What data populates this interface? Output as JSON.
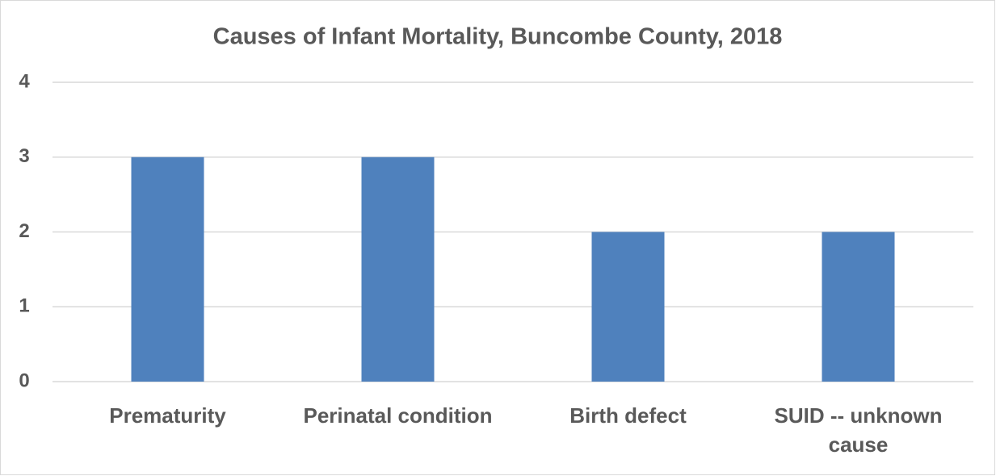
{
  "chart_data": {
    "type": "bar",
    "title": "Causes of Infant Mortality, Buncombe County, 2018",
    "categories": [
      "Prematurity",
      "Perinatal condition",
      "Birth defect",
      "SUID -- unknown cause"
    ],
    "values": [
      3,
      3,
      2,
      2
    ],
    "color": "#4f81bd",
    "ylim": [
      0,
      4
    ],
    "yticks": [
      0,
      1,
      2,
      3,
      4
    ],
    "grid": true
  }
}
